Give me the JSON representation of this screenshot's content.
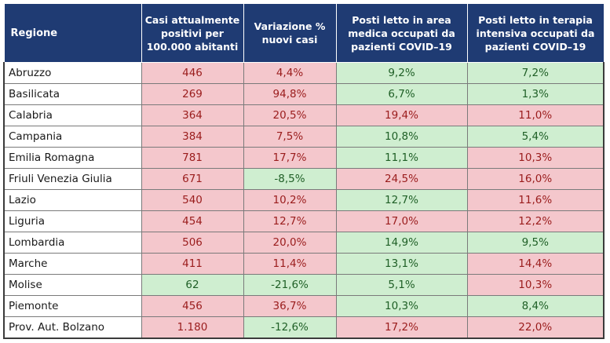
{
  "chart_data": {
    "type": "table",
    "columns": [
      "Regione",
      "Casi attualmente positivi per 100.000 abitanti",
      "Variazione % nuovi casi",
      "Posti letto in area medica occupati da pazienti COVID–19",
      "Posti letto in terapia intensiva occupati da pazienti COVID–19"
    ],
    "rows": [
      {
        "region": "Abruzzo",
        "values": [
          "446",
          "4,4%",
          "9,2%",
          "7,2%"
        ],
        "status": [
          "red",
          "red",
          "green",
          "green"
        ]
      },
      {
        "region": "Basilicata",
        "values": [
          "269",
          "94,8%",
          "6,7%",
          "1,3%"
        ],
        "status": [
          "red",
          "red",
          "green",
          "green"
        ]
      },
      {
        "region": "Calabria",
        "values": [
          "364",
          "20,5%",
          "19,4%",
          "11,0%"
        ],
        "status": [
          "red",
          "red",
          "red",
          "red"
        ]
      },
      {
        "region": "Campania",
        "values": [
          "384",
          "7,5%",
          "10,8%",
          "5,4%"
        ],
        "status": [
          "red",
          "red",
          "green",
          "green"
        ]
      },
      {
        "region": "Emilia Romagna",
        "values": [
          "781",
          "17,7%",
          "11,1%",
          "10,3%"
        ],
        "status": [
          "red",
          "red",
          "green",
          "red"
        ]
      },
      {
        "region": "Friuli Venezia Giulia",
        "values": [
          "671",
          "-8,5%",
          "24,5%",
          "16,0%"
        ],
        "status": [
          "red",
          "green",
          "red",
          "red"
        ]
      },
      {
        "region": "Lazio",
        "values": [
          "540",
          "10,2%",
          "12,7%",
          "11,6%"
        ],
        "status": [
          "red",
          "red",
          "green",
          "red"
        ]
      },
      {
        "region": "Liguria",
        "values": [
          "454",
          "12,7%",
          "17,0%",
          "12,2%"
        ],
        "status": [
          "red",
          "red",
          "red",
          "red"
        ]
      },
      {
        "region": "Lombardia",
        "values": [
          "506",
          "20,0%",
          "14,9%",
          "9,5%"
        ],
        "status": [
          "red",
          "red",
          "green",
          "green"
        ]
      },
      {
        "region": "Marche",
        "values": [
          "411",
          "11,4%",
          "13,1%",
          "14,4%"
        ],
        "status": [
          "red",
          "red",
          "green",
          "red"
        ]
      },
      {
        "region": "Molise",
        "values": [
          "62",
          "-21,6%",
          "5,1%",
          "10,3%"
        ],
        "status": [
          "green",
          "green",
          "green",
          "red"
        ]
      },
      {
        "region": "Piemonte",
        "values": [
          "456",
          "36,7%",
          "10,3%",
          "8,4%"
        ],
        "status": [
          "red",
          "red",
          "green",
          "green"
        ]
      },
      {
        "region": "Prov. Aut. Bolzano",
        "values": [
          "1.180",
          "-12,6%",
          "17,2%",
          "22,0%"
        ],
        "status": [
          "red",
          "green",
          "red",
          "red"
        ]
      }
    ],
    "colors": {
      "header_bg": "#1f3b73",
      "header_text": "#ffffff",
      "red_bg": "#f4c7cc",
      "red_text": "#9a1c1c",
      "green_bg": "#cfeed0",
      "green_text": "#1f5f26"
    }
  }
}
